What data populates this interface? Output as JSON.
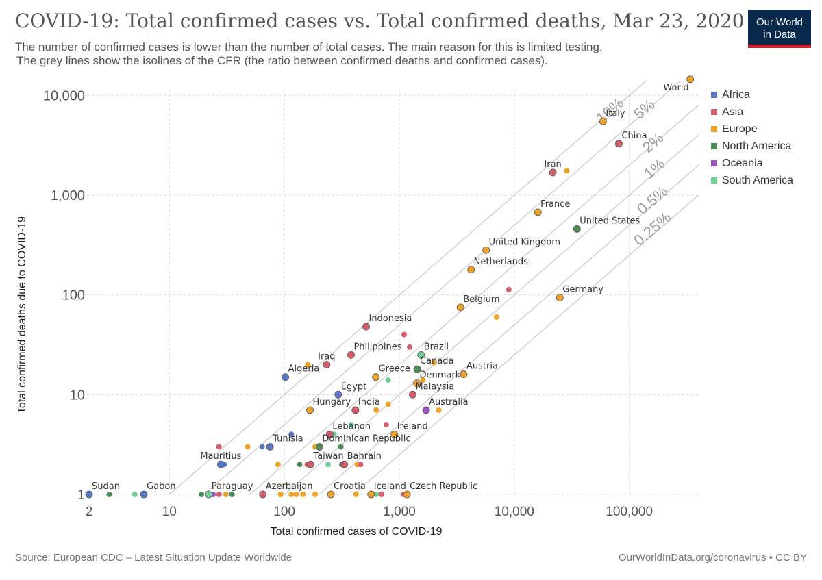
{
  "header": {
    "title": "COVID-19: Total confirmed cases vs. Total confirmed deaths, Mar 23, 2020",
    "subtitle_line1": "The number of confirmed cases is lower than the number of total cases. The main reason for this is limited testing.",
    "subtitle_line2": "The grey lines show the isolines of the CFR (the ratio between confirmed deaths and confirmed cases).",
    "logo_line1": "Our World",
    "logo_line2": "in Data"
  },
  "footer": {
    "source": "Source: European CDC – Latest Situation Update Worldwide",
    "credit": "OurWorldInData.org/coronavirus • CC BY"
  },
  "colors": {
    "Africa": "#5b76c4",
    "Asia": "#d35f6c",
    "Europe": "#eea22a",
    "North America": "#4f8b56",
    "Oceania": "#9e52c0",
    "South America": "#6fcf97"
  },
  "chart_data": {
    "type": "scatter",
    "title": "COVID-19: Total confirmed cases vs. Total confirmed deaths, Mar 23, 2020",
    "xlabel": "Total confirmed cases of COVID-19",
    "ylabel": "Total confirmed deaths due to COVID-19",
    "x_scale": "log",
    "y_scale": "log",
    "xlim": [
      2,
      350000
    ],
    "ylim": [
      1,
      14000
    ],
    "x_ticks": [
      2,
      10,
      100,
      1000,
      10000,
      100000
    ],
    "x_tick_labels": [
      "2",
      "10",
      "100",
      "1,000",
      "10,000",
      "100,000"
    ],
    "y_ticks": [
      1,
      10,
      100,
      1000,
      10000
    ],
    "y_tick_labels": [
      "1",
      "10",
      "100",
      "1,000",
      "10,000"
    ],
    "grid": true,
    "legend": "right",
    "legend_entries": [
      "Africa",
      "Asia",
      "Europe",
      "North America",
      "Oceania",
      "South America"
    ],
    "cfr_isolines": [
      {
        "label": "10%",
        "ratio": 0.1
      },
      {
        "label": "5%",
        "ratio": 0.05
      },
      {
        "label": "2%",
        "ratio": 0.02
      },
      {
        "label": "1%",
        "ratio": 0.01
      },
      {
        "label": "0.5%",
        "ratio": 0.005
      },
      {
        "label": "0.25%",
        "ratio": 0.0025
      }
    ],
    "points": [
      {
        "label": "World",
        "x": 339000,
        "y": 14500,
        "region": "Europe",
        "large": true,
        "label_pos": "left-below"
      },
      {
        "label": "Italy",
        "x": 59138,
        "y": 5476,
        "region": "Europe",
        "large": true,
        "label_pos": "above-right"
      },
      {
        "label": "China",
        "x": 81171,
        "y": 3277,
        "region": "Asia",
        "large": true,
        "label_pos": "above-right"
      },
      {
        "label": "Iran",
        "x": 21638,
        "y": 1685,
        "region": "Asia",
        "large": true,
        "label_pos": "above"
      },
      {
        "label": "",
        "x": 28603,
        "y": 1756,
        "region": "Europe",
        "large": false
      },
      {
        "label": "France",
        "x": 16018,
        "y": 674,
        "region": "Europe",
        "large": true,
        "label_pos": "above-right"
      },
      {
        "label": "United States",
        "x": 35070,
        "y": 458,
        "region": "North America",
        "large": true,
        "label_pos": "above-right"
      },
      {
        "label": "United Kingdom",
        "x": 5683,
        "y": 281,
        "region": "Europe",
        "large": true,
        "label_pos": "above-right"
      },
      {
        "label": "Netherlands",
        "x": 4204,
        "y": 179,
        "region": "Europe",
        "large": true,
        "label_pos": "above-right"
      },
      {
        "label": "",
        "x": 8961,
        "y": 113,
        "region": "Asia",
        "large": false
      },
      {
        "label": "Germany",
        "x": 24873,
        "y": 94,
        "region": "Europe",
        "large": true,
        "label_pos": "above-right"
      },
      {
        "label": "Belgium",
        "x": 3401,
        "y": 75,
        "region": "Europe",
        "large": true,
        "label_pos": "above-right"
      },
      {
        "label": "",
        "x": 7000,
        "y": 60,
        "region": "Europe",
        "large": false
      },
      {
        "label": "Indonesia",
        "x": 514,
        "y": 48,
        "region": "Asia",
        "large": true,
        "label_pos": "above-right"
      },
      {
        "label": "",
        "x": 1100,
        "y": 40,
        "region": "Asia",
        "large": false
      },
      {
        "label": "",
        "x": 1230,
        "y": 30,
        "region": "Asia",
        "large": false
      },
      {
        "label": "Philippines",
        "x": 380,
        "y": 25,
        "region": "Asia",
        "large": true,
        "label_pos": "above-right"
      },
      {
        "label": "Brazil",
        "x": 1546,
        "y": 25,
        "region": "South America",
        "large": true,
        "label_pos": "above-right"
      },
      {
        "label": "Iraq",
        "x": 233,
        "y": 20,
        "region": "Asia",
        "large": true,
        "label_pos": "above"
      },
      {
        "label": "",
        "x": 160,
        "y": 20,
        "region": "Europe",
        "large": false
      },
      {
        "label": "",
        "x": 2000,
        "y": 21,
        "region": "Europe",
        "large": false
      },
      {
        "label": "Canada",
        "x": 1430,
        "y": 18,
        "region": "North America",
        "large": true,
        "label_pos": "above-right"
      },
      {
        "label": "Algeria",
        "x": 102,
        "y": 15,
        "region": "Africa",
        "large": true,
        "label_pos": "above-right"
      },
      {
        "label": "Greece",
        "x": 624,
        "y": 15,
        "region": "Europe",
        "large": true,
        "label_pos": "above-right"
      },
      {
        "label": "Austria",
        "x": 3631,
        "y": 16,
        "region": "Europe",
        "large": true,
        "label_pos": "above-right"
      },
      {
        "label": "",
        "x": 800,
        "y": 14,
        "region": "South America",
        "large": false
      },
      {
        "label": "Denmark",
        "x": 1420,
        "y": 13,
        "region": "Europe",
        "large": true,
        "label_pos": "above-right"
      },
      {
        "label": "",
        "x": 1600,
        "y": 14,
        "region": "Europe",
        "large": false
      },
      {
        "label": "Malaysia",
        "x": 1306,
        "y": 10,
        "region": "Asia",
        "large": true,
        "label_pos": "above-right"
      },
      {
        "label": "Egypt",
        "x": 294,
        "y": 10,
        "region": "Africa",
        "large": true,
        "label_pos": "above-right"
      },
      {
        "label": "Australia",
        "x": 1709,
        "y": 7,
        "region": "Oceania",
        "large": true,
        "label_pos": "above-right"
      },
      {
        "label": "",
        "x": 2200,
        "y": 7,
        "region": "Europe",
        "large": false
      },
      {
        "label": "Hungary",
        "x": 167,
        "y": 7,
        "region": "Europe",
        "large": true,
        "label_pos": "above-right"
      },
      {
        "label": "India",
        "x": 415,
        "y": 7,
        "region": "Asia",
        "large": true,
        "label_pos": "above-right"
      },
      {
        "label": "",
        "x": 630,
        "y": 7,
        "region": "Europe",
        "large": false
      },
      {
        "label": "",
        "x": 800,
        "y": 8,
        "region": "Europe",
        "large": false
      },
      {
        "label": "",
        "x": 380,
        "y": 5,
        "region": "South America",
        "large": false
      },
      {
        "label": "",
        "x": 770,
        "y": 5,
        "region": "Asia",
        "large": false
      },
      {
        "label": "Ireland",
        "x": 906,
        "y": 4,
        "region": "Europe",
        "large": true,
        "label_pos": "above-right"
      },
      {
        "label": "",
        "x": 115,
        "y": 4,
        "region": "Africa",
        "large": false
      },
      {
        "label": "Lebanon",
        "x": 248,
        "y": 4,
        "region": "Asia",
        "large": true,
        "label_pos": "above-right"
      },
      {
        "label": "",
        "x": 270,
        "y": 4,
        "region": "South America",
        "large": false
      },
      {
        "label": "Tunisia",
        "x": 75,
        "y": 3,
        "region": "Africa",
        "large": true,
        "label_pos": "above-right"
      },
      {
        "label": "",
        "x": 27,
        "y": 3,
        "region": "Asia",
        "large": false
      },
      {
        "label": "",
        "x": 48,
        "y": 3,
        "region": "Europe",
        "large": false
      },
      {
        "label": "",
        "x": 64,
        "y": 3,
        "region": "Africa",
        "large": false
      },
      {
        "label": "Dominican Republic",
        "x": 202,
        "y": 3,
        "region": "North America",
        "large": true,
        "label_pos": "above-right"
      },
      {
        "label": "",
        "x": 185,
        "y": 3,
        "region": "Europe",
        "large": false
      },
      {
        "label": "",
        "x": 310,
        "y": 3,
        "region": "North America",
        "large": false
      },
      {
        "label": "Mauritius",
        "x": 28,
        "y": 2,
        "region": "Africa",
        "large": true,
        "label_pos": "above"
      },
      {
        "label": "",
        "x": 30,
        "y": 2,
        "region": "Africa",
        "large": false
      },
      {
        "label": "",
        "x": 88,
        "y": 2,
        "region": "Europe",
        "large": false
      },
      {
        "label": "",
        "x": 136,
        "y": 2,
        "region": "North America",
        "large": false
      },
      {
        "label": "",
        "x": 158,
        "y": 2,
        "region": "Asia",
        "large": false
      },
      {
        "label": "Taiwan",
        "x": 169,
        "y": 2,
        "region": "Asia",
        "large": true,
        "label_pos": "above-right"
      },
      {
        "label": "",
        "x": 240,
        "y": 2,
        "region": "South America",
        "large": false
      },
      {
        "label": "Bahrain",
        "x": 332,
        "y": 2,
        "region": "Asia",
        "large": true,
        "label_pos": "above-right"
      },
      {
        "label": "",
        "x": 316,
        "y": 2,
        "region": "North America",
        "large": false
      },
      {
        "label": "",
        "x": 430,
        "y": 2,
        "region": "Europe",
        "large": false
      },
      {
        "label": "",
        "x": 460,
        "y": 2,
        "region": "Asia",
        "large": false
      },
      {
        "label": "Sudan",
        "x": 2,
        "y": 1,
        "region": "Africa",
        "large": true,
        "label_pos": "above-right"
      },
      {
        "label": "",
        "x": 3,
        "y": 1,
        "region": "North America",
        "large": false
      },
      {
        "label": "",
        "x": 5,
        "y": 1,
        "region": "South America",
        "large": false
      },
      {
        "label": "Gabon",
        "x": 6,
        "y": 1,
        "region": "Africa",
        "large": true,
        "label_pos": "above-right"
      },
      {
        "label": "",
        "x": 19,
        "y": 1,
        "region": "North America",
        "large": false
      },
      {
        "label": "Paraguay",
        "x": 22,
        "y": 1,
        "region": "South America",
        "large": true,
        "label_pos": "above-right"
      },
      {
        "label": "",
        "x": 24,
        "y": 1,
        "region": "Oceania",
        "large": false
      },
      {
        "label": "",
        "x": 27,
        "y": 1,
        "region": "Asia",
        "large": false
      },
      {
        "label": "",
        "x": 31,
        "y": 1,
        "region": "Europe",
        "large": false
      },
      {
        "label": "",
        "x": 35,
        "y": 1,
        "region": "North America",
        "large": false
      },
      {
        "label": "Azerbaijan",
        "x": 65,
        "y": 1,
        "region": "Asia",
        "large": true,
        "label_pos": "above-right"
      },
      {
        "label": "",
        "x": 93,
        "y": 1,
        "region": "Europe",
        "large": false
      },
      {
        "label": "",
        "x": 115,
        "y": 1,
        "region": "Europe",
        "large": false
      },
      {
        "label": "",
        "x": 127,
        "y": 1,
        "region": "Europe",
        "large": false
      },
      {
        "label": "",
        "x": 145,
        "y": 1,
        "region": "Europe",
        "large": false
      },
      {
        "label": "",
        "x": 185,
        "y": 1,
        "region": "Europe",
        "large": false
      },
      {
        "label": "Croatia",
        "x": 254,
        "y": 1,
        "region": "Europe",
        "large": true,
        "label_pos": "above-right"
      },
      {
        "label": "",
        "x": 420,
        "y": 1,
        "region": "Europe",
        "large": false
      },
      {
        "label": "Iceland",
        "x": 568,
        "y": 1,
        "region": "Europe",
        "large": true,
        "label_pos": "above-right"
      },
      {
        "label": "",
        "x": 630,
        "y": 1,
        "region": "South America",
        "large": false
      },
      {
        "label": "",
        "x": 700,
        "y": 1,
        "region": "Asia",
        "large": false
      },
      {
        "label": "",
        "x": 1090,
        "y": 1,
        "region": "Asia",
        "large": false
      },
      {
        "label": "Czech Republic",
        "x": 1165,
        "y": 1,
        "region": "Europe",
        "large": true,
        "label_pos": "above-right"
      }
    ]
  }
}
